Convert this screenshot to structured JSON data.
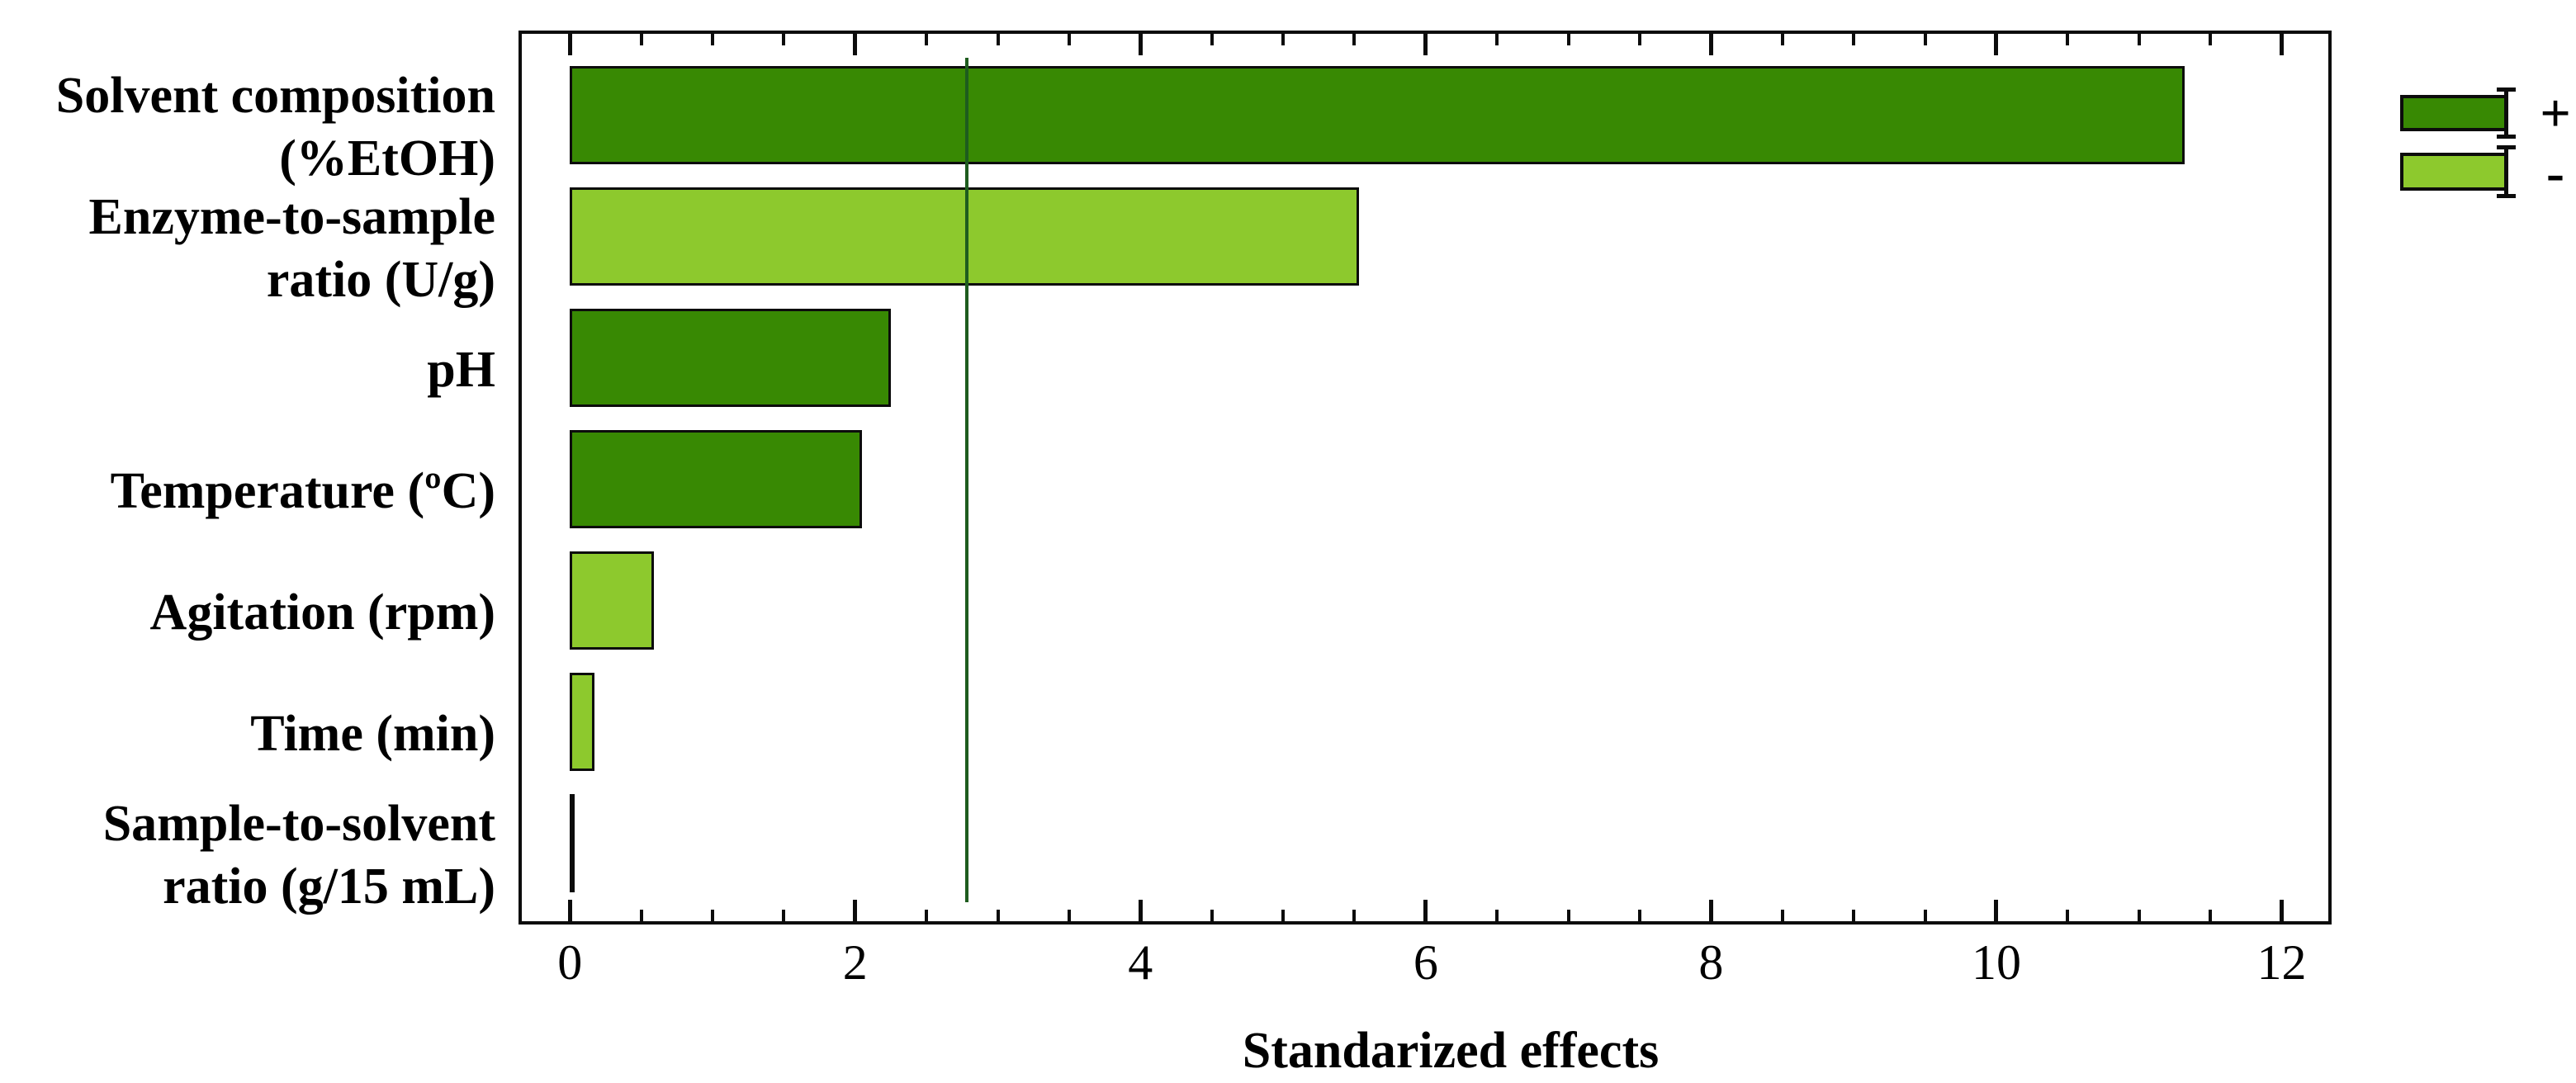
{
  "chart_data": {
    "type": "bar",
    "orientation": "horizontal",
    "title": "",
    "xlabel": "Standarized effects",
    "ylabel": "",
    "categories": [
      [
        "Solvent composition",
        "(%EtOH)"
      ],
      [
        "Enzyme-to-sample",
        "ratio (U/g)"
      ],
      [
        "pH"
      ],
      [
        "Temperature (ºC)"
      ],
      [
        "Agitation (rpm)"
      ],
      [
        "Time (min)"
      ],
      [
        "Sample-to-solvent",
        "ratio (g/15 mL)"
      ]
    ],
    "values": [
      11.32,
      5.53,
      2.25,
      2.05,
      0.59,
      0.17,
      0.03
    ],
    "signs": [
      "+",
      "-",
      "+",
      "+",
      "-",
      "-",
      "+"
    ],
    "reference_line_x": 2.78,
    "xlim": [
      -0.36,
      12.35
    ],
    "x_major_ticks": [
      0,
      2,
      4,
      6,
      8,
      10,
      12
    ],
    "x_minor_tick_step": 0.5,
    "grid": false,
    "legend": {
      "position": "top-right-outside",
      "items": [
        {
          "label": "+",
          "color": "#388903"
        },
        {
          "label": "-",
          "color": "#8dc92d"
        }
      ]
    },
    "colors": {
      "positive_bar": "#388903",
      "negative_bar": "#8dc92d",
      "bar_border": "#0c0c0c",
      "reference_line": "#1e5c1e",
      "axis": "#0c0c0c",
      "text": "#000000",
      "background": "#ffffff"
    }
  }
}
